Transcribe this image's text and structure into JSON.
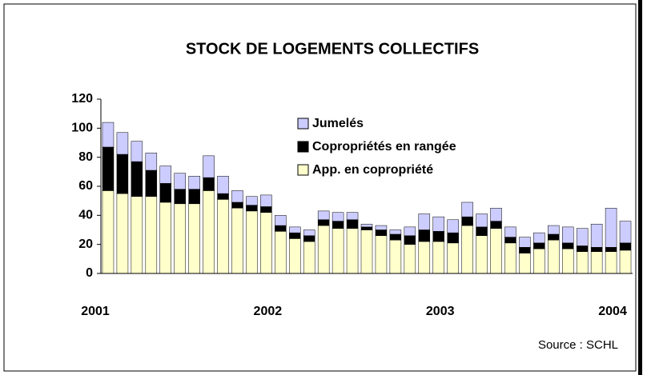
{
  "chart_data": {
    "type": "stacked_bar",
    "title": "STOCK DE LOGEMENTS COLLECTIFS",
    "categories": [
      "2001",
      null,
      null,
      null,
      null,
      null,
      null,
      null,
      null,
      null,
      null,
      null,
      "2002",
      null,
      null,
      null,
      null,
      null,
      null,
      null,
      null,
      null,
      null,
      null,
      "2003",
      null,
      null,
      null,
      null,
      null,
      null,
      null,
      null,
      null,
      null,
      null,
      "2004"
    ],
    "series": [
      {
        "name": "App. en copropriété",
        "color": "#ffffcc",
        "values": [
          57,
          55,
          53,
          53,
          49,
          48,
          48,
          57,
          51,
          45,
          43,
          42,
          29,
          24,
          22,
          33,
          31,
          31,
          30,
          26,
          23,
          20,
          22,
          22,
          21,
          33,
          26,
          31,
          21,
          14,
          17,
          23,
          17,
          15,
          15,
          15,
          16
        ]
      },
      {
        "name": "Copropriétés en rangée",
        "color": "#000000",
        "values": [
          30,
          27,
          24,
          18,
          13,
          10,
          10,
          9,
          4,
          4,
          4,
          4,
          4,
          4,
          4,
          4,
          5,
          6,
          2,
          4,
          4,
          6,
          8,
          7,
          7,
          6,
          6,
          5,
          4,
          4,
          4,
          4,
          4,
          4,
          3,
          3,
          5
        ]
      },
      {
        "name": "Jumelés",
        "color": "#ccccff",
        "values": [
          17,
          15,
          14,
          12,
          12,
          11,
          9,
          15,
          12,
          8,
          6,
          8,
          7,
          4,
          4,
          6,
          6,
          5,
          2,
          3,
          3,
          6,
          11,
          10,
          9,
          10,
          9,
          9,
          7,
          7,
          7,
          6,
          11,
          12,
          16,
          27,
          15
        ]
      }
    ],
    "ylim": [
      0,
      120
    ],
    "yticks": [
      0,
      20,
      40,
      60,
      80,
      100,
      120
    ],
    "annotation": "Source : SCHL"
  }
}
